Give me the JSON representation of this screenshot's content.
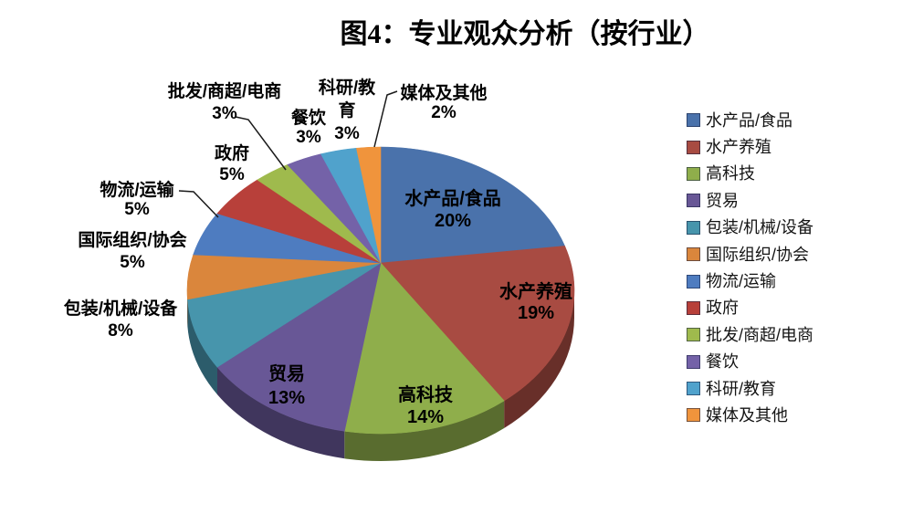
{
  "title": "图4：专业观众分析（按行业）",
  "chart_data": {
    "type": "pie",
    "style": "3d",
    "unit": "percent",
    "direction": "clockwise",
    "start_angle_deg": 0,
    "legend_position": "right",
    "total": 100,
    "slices": [
      {
        "label": "水产品/食品",
        "value": 20,
        "pct_label": "20%",
        "color": "#4A72AB"
      },
      {
        "label": "水产养殖",
        "value": 19,
        "pct_label": "19%",
        "color": "#A84B42"
      },
      {
        "label": "高科技",
        "value": 14,
        "pct_label": "14%",
        "color": "#8FAE4B"
      },
      {
        "label": "贸易",
        "value": 13,
        "pct_label": "13%",
        "color": "#685796"
      },
      {
        "label": "包装/机械/设备",
        "value": 8,
        "pct_label": "8%",
        "color": "#4795AC"
      },
      {
        "label": "国际组织/协会",
        "value": 5,
        "pct_label": "5%",
        "color": "#DA863C"
      },
      {
        "label": "物流/运输",
        "value": 5,
        "pct_label": "5%",
        "color": "#4E7CC0"
      },
      {
        "label": "政府",
        "value": 5,
        "pct_label": "5%",
        "color": "#B8403A"
      },
      {
        "label": "批发/商超/电商",
        "value": 3,
        "pct_label": "3%",
        "color": "#9FBA4D"
      },
      {
        "label": "餐饮",
        "value": 3,
        "pct_label": "3%",
        "color": "#7462A8"
      },
      {
        "label": "科研/教育",
        "value": 3,
        "pct_label": "3%",
        "color": "#50A2CC"
      },
      {
        "label": "媒体及其他",
        "value": 2,
        "pct_label": "2%",
        "color": "#F0943C"
      }
    ]
  }
}
